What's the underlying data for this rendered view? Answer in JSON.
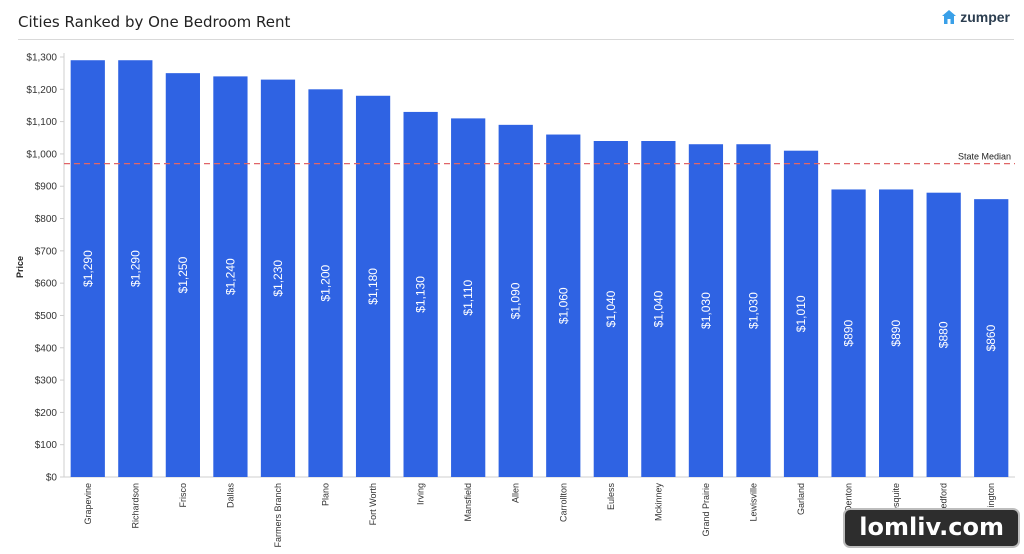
{
  "header": {
    "title": "Cities Ranked by One Bedroom Rent",
    "brand": "zumper"
  },
  "watermark": "lomliv.com",
  "colors": {
    "bar": "#2F63E3",
    "median_line": "#E06666",
    "grid": "#e6e6e6"
  },
  "chart_data": {
    "type": "bar",
    "title": "Cities Ranked by One Bedroom Rent",
    "xlabel": "",
    "ylabel": "Price",
    "ylim": [
      0,
      1300
    ],
    "yticks": [
      0,
      100,
      200,
      300,
      400,
      500,
      600,
      700,
      800,
      900,
      1000,
      1100,
      1200,
      1300
    ],
    "ytick_labels": [
      "$0",
      "$100",
      "$200",
      "$300",
      "$400",
      "$500",
      "$600",
      "$700",
      "$800",
      "$900",
      "$1,000",
      "$1,100",
      "$1,200",
      "$1,300"
    ],
    "categories": [
      "Grapevine",
      "Richardson",
      "Frisco",
      "Dallas",
      "Farmers Branch",
      "Plano",
      "Fort Worth",
      "Irving",
      "Mansfield",
      "Allen",
      "Carrollton",
      "Euless",
      "Mckinney",
      "Grand Prairie",
      "Lewisville",
      "Garland",
      "Denton",
      "Mesquite",
      "Bedford",
      "Arlington"
    ],
    "values": [
      1290,
      1290,
      1250,
      1240,
      1230,
      1200,
      1180,
      1130,
      1110,
      1090,
      1060,
      1040,
      1040,
      1030,
      1030,
      1010,
      890,
      890,
      880,
      860
    ],
    "value_labels": [
      "$1,290",
      "$1,290",
      "$1,250",
      "$1,240",
      "$1,230",
      "$1,200",
      "$1,180",
      "$1,130",
      "$1,110",
      "$1,090",
      "$1,060",
      "$1,040",
      "$1,040",
      "$1,030",
      "$1,030",
      "$1,010",
      "$890",
      "$890",
      "$880",
      "$860"
    ],
    "reference_line": {
      "label": "State Median",
      "value": 970,
      "style": "dashed"
    },
    "grid": false
  }
}
